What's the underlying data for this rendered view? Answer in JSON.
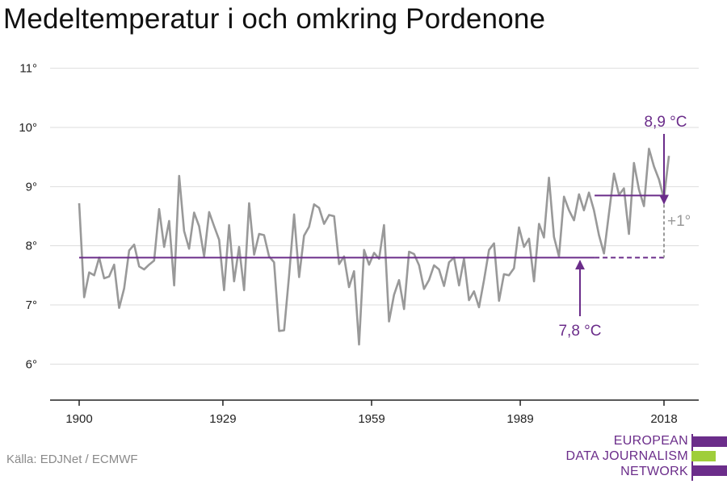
{
  "title": "Medeltemperatur i och omkring Pordenone",
  "source": "Källa: EDJNet / ECMWF",
  "logo": {
    "line1": "EUROPEAN",
    "line2": "DATA JOURNALISM",
    "line3": "NETWORK"
  },
  "colors": {
    "series": "#999999",
    "accent": "#6b2d8a",
    "grid": "#dddddd",
    "logo_green": "#9fce3a"
  },
  "chart_data": {
    "type": "line",
    "title": "Medeltemperatur i och omkring Pordenone",
    "xlabel": "",
    "ylabel": "",
    "xlim": [
      1900,
      2018
    ],
    "ylim": [
      5.4,
      11.2
    ],
    "grid": true,
    "x_ticks": [
      1900,
      1929,
      1959,
      1989,
      2018
    ],
    "x_tick_labels": [
      "1900",
      "1929",
      "1959",
      "1989",
      "2018"
    ],
    "y_ticks": [
      6,
      7,
      8,
      9,
      10,
      11
    ],
    "y_tick_labels": [
      "6°",
      "7°",
      "8°",
      "9°",
      "10°",
      "11°"
    ],
    "series": [
      {
        "x_start": 1900,
        "x_end": 2019,
        "values": [
          8.72,
          7.13,
          7.55,
          7.5,
          7.8,
          7.45,
          7.48,
          7.68,
          6.95,
          7.28,
          7.92,
          8.02,
          7.65,
          7.6,
          7.68,
          7.75,
          8.62,
          7.98,
          8.42,
          7.33,
          9.18,
          8.25,
          7.95,
          8.56,
          8.33,
          7.82,
          8.57,
          8.33,
          8.1,
          7.25,
          8.35,
          7.4,
          7.98,
          7.25,
          8.72,
          7.85,
          8.2,
          8.18,
          7.82,
          7.72,
          6.56,
          6.57,
          7.5,
          8.53,
          7.47,
          8.17,
          8.32,
          8.7,
          8.64,
          8.37,
          8.52,
          8.5,
          7.69,
          7.82,
          7.3,
          7.57,
          6.33,
          7.93,
          7.68,
          7.88,
          7.78,
          8.35,
          6.72,
          7.17,
          7.42,
          6.93,
          7.9,
          7.86,
          7.67,
          7.27,
          7.42,
          7.67,
          7.6,
          7.32,
          7.72,
          7.8,
          7.33,
          7.78,
          7.08,
          7.23,
          6.96,
          7.42,
          7.93,
          8.04,
          7.07,
          7.52,
          7.5,
          7.62,
          8.31,
          7.98,
          8.12,
          7.4,
          8.37,
          8.14,
          9.15,
          8.15,
          7.82,
          8.83,
          8.6,
          8.43,
          8.87,
          8.6,
          8.9,
          8.6,
          8.18,
          7.87,
          8.55,
          9.22,
          8.86,
          8.97,
          8.2,
          9.4,
          8.95,
          8.67,
          9.64,
          9.34,
          9.12,
          8.8,
          9.52
        ]
      }
    ],
    "baseline": {
      "value": 7.8,
      "label": "7,8 °C",
      "solid_to": 2004,
      "dashed_to": 2018
    },
    "recent": {
      "value": 8.85,
      "from": 2004,
      "to": 2018,
      "label": "8,9 °C"
    },
    "difference_label": "+1°"
  }
}
